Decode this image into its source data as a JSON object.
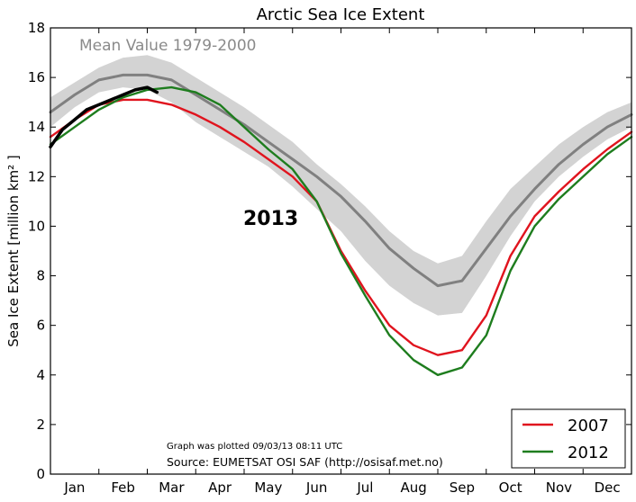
{
  "chart_data": {
    "type": "line",
    "title": "Arctic Sea Ice Extent",
    "ylabel": "Sea Ice Extent [million km² ]",
    "xlabel": "",
    "ylim": [
      0,
      18
    ],
    "yticks": [
      0,
      2,
      4,
      6,
      8,
      10,
      12,
      14,
      16,
      18
    ],
    "month_labels": [
      "Jan",
      "Feb",
      "Mar",
      "Apr",
      "May",
      "Jun",
      "Jul",
      "Aug",
      "Sep",
      "Oct",
      "Nov",
      "Dec"
    ],
    "grid": false,
    "legend_position": "bottom-right",
    "x_unit": "month (0 = Jan 1, 12 = Dec 31)",
    "mean_label": "Mean Value 1979-2000",
    "year_annotation": "2013",
    "footnote_plotted": "Graph was plotted 09/03/13 08:11 UTC",
    "footnote_source": "Source: EUMETSAT OSI SAF (http://osisaf.met.no)",
    "band": {
      "x": [
        0,
        0.5,
        1,
        1.5,
        2,
        2.5,
        3,
        3.5,
        4,
        4.5,
        5,
        5.5,
        6,
        6.5,
        7,
        7.5,
        8,
        8.5,
        9,
        9.5,
        10,
        10.5,
        11,
        11.5,
        12
      ],
      "upper": [
        15.2,
        15.8,
        16.4,
        16.8,
        16.9,
        16.6,
        16.0,
        15.4,
        14.8,
        14.1,
        13.4,
        12.5,
        11.7,
        10.8,
        9.8,
        9.0,
        8.5,
        8.8,
        10.2,
        11.5,
        12.4,
        13.3,
        14.0,
        14.6,
        15.0
      ],
      "lower": [
        14.0,
        14.8,
        15.4,
        15.6,
        15.5,
        15.0,
        14.2,
        13.6,
        13.0,
        12.4,
        11.6,
        10.7,
        9.8,
        8.6,
        7.6,
        6.9,
        6.4,
        6.5,
        8.0,
        9.6,
        11.0,
        12.0,
        12.8,
        13.5,
        14.0
      ]
    },
    "series": [
      {
        "name": "Mean Value 1979-2000",
        "color": "#808080",
        "x": [
          0,
          0.5,
          1,
          1.5,
          2,
          2.5,
          3,
          3.5,
          4,
          4.5,
          5,
          5.5,
          6,
          6.5,
          7,
          7.5,
          8,
          8.5,
          9,
          9.5,
          10,
          10.5,
          11,
          11.5,
          12
        ],
        "values": [
          14.6,
          15.3,
          15.9,
          16.1,
          16.1,
          15.9,
          15.3,
          14.7,
          14.1,
          13.4,
          12.7,
          12.0,
          11.2,
          10.2,
          9.1,
          8.3,
          7.6,
          7.8,
          9.1,
          10.4,
          11.5,
          12.5,
          13.3,
          14.0,
          14.5
        ]
      },
      {
        "name": "2007",
        "color": "#e0141e",
        "x": [
          0,
          0.5,
          1,
          1.5,
          2,
          2.5,
          3,
          3.5,
          4,
          4.5,
          5,
          5.5,
          6,
          6.5,
          7,
          7.5,
          8,
          8.5,
          9,
          9.5,
          10,
          10.5,
          11,
          11.5,
          12
        ],
        "values": [
          13.6,
          14.3,
          14.9,
          15.1,
          15.1,
          14.9,
          14.5,
          14.0,
          13.4,
          12.7,
          12.0,
          11.0,
          9.0,
          7.4,
          6.0,
          5.2,
          4.8,
          5.0,
          6.4,
          8.8,
          10.4,
          11.4,
          12.3,
          13.1,
          13.8
        ]
      },
      {
        "name": "2012",
        "color": "#1e7d1e",
        "x": [
          0,
          0.5,
          1,
          1.5,
          2,
          2.5,
          3,
          3.5,
          4,
          4.5,
          5,
          5.5,
          6,
          6.5,
          7,
          7.5,
          8,
          8.5,
          9,
          9.5,
          10,
          10.5,
          11,
          11.5,
          12
        ],
        "values": [
          13.3,
          14.0,
          14.7,
          15.2,
          15.5,
          15.6,
          15.4,
          14.9,
          14.0,
          13.1,
          12.3,
          11.0,
          8.9,
          7.2,
          5.6,
          4.6,
          4.0,
          4.3,
          5.6,
          8.2,
          10.0,
          11.1,
          12.0,
          12.9,
          13.6
        ]
      },
      {
        "name": "2013",
        "color": "#000000",
        "x": [
          0,
          0.25,
          0.5,
          0.75,
          1,
          1.25,
          1.5,
          1.75,
          2.0,
          2.2
        ],
        "values": [
          13.2,
          13.9,
          14.3,
          14.7,
          14.9,
          15.1,
          15.3,
          15.5,
          15.6,
          15.4
        ]
      }
    ]
  }
}
